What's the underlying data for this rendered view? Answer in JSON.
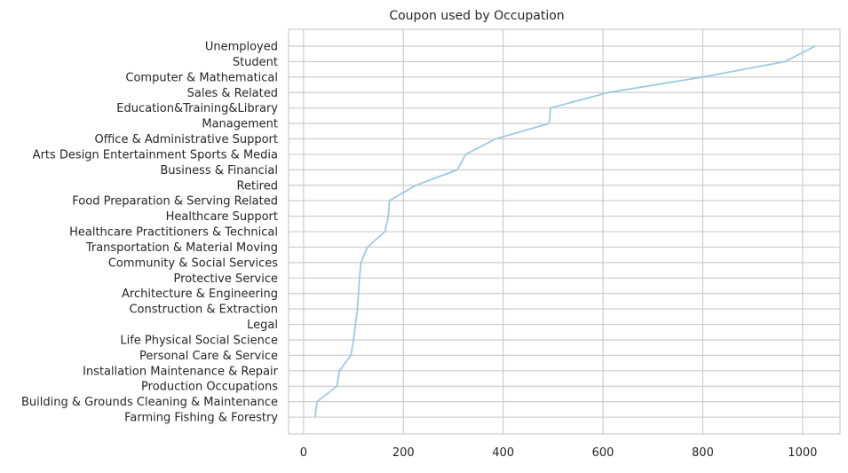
{
  "chart_data": {
    "type": "line",
    "title": "Coupon used by Occupation",
    "xlabel": "",
    "ylabel": "",
    "xlim": [
      -30,
      1075
    ],
    "xticks": [
      0,
      200,
      400,
      600,
      800,
      1000
    ],
    "grid": true,
    "categories": [
      "Unemployed",
      "Student",
      "Computer & Mathematical",
      "Sales & Related",
      "Education&Training&Library",
      "Management",
      "Office & Administrative Support",
      "Arts Design Entertainment Sports & Media",
      "Business & Financial",
      "Retired",
      "Food Preparation & Serving Related",
      "Healthcare Support",
      "Healthcare Practitioners & Technical",
      "Transportation & Material Moving",
      "Community & Social Services",
      "Protective Service",
      "Architecture & Engineering",
      "Construction & Extraction",
      "Legal",
      "Life Physical Social Science",
      "Personal Care & Service",
      "Installation Maintenance & Repair",
      "Production Occupations",
      "Building & Grounds Cleaning & Maintenance",
      "Farming Fishing & Forestry"
    ],
    "series": [
      {
        "color": "#9ecae1",
        "values": [
          1025,
          965,
          800,
          610,
          495,
          492,
          385,
          325,
          308,
          225,
          172,
          170,
          163,
          128,
          115,
          112,
          110,
          108,
          104,
          100,
          95,
          72,
          67,
          27,
          23
        ]
      }
    ]
  },
  "colors": {
    "grid": "#cccccc",
    "text": "#262626",
    "spine": "#cccccc",
    "line": "#9ecae1"
  }
}
